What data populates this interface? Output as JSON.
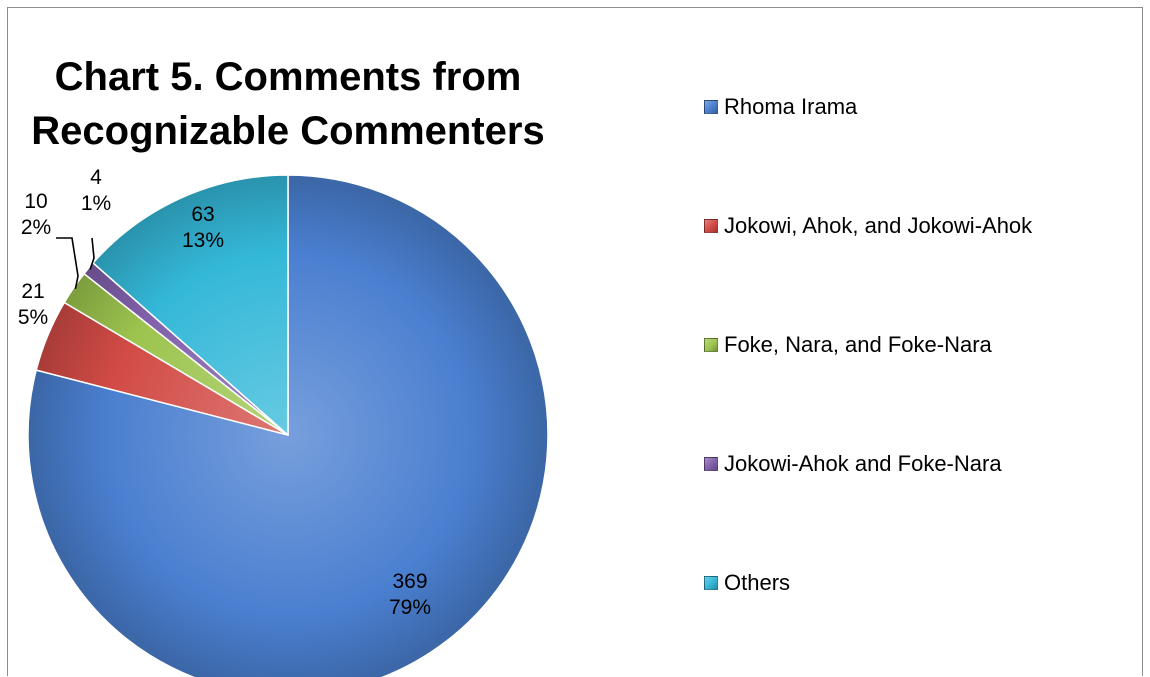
{
  "chart_data": {
    "type": "pie",
    "title_lines": [
      "Chart 5. Comments from",
      "Recognizable Commenters"
    ],
    "legend_position": "right",
    "slices": [
      {
        "name": "Rhoma Irama",
        "value": 369,
        "value_label": "369",
        "percent_label": "79%",
        "color": "#4a7fd0"
      },
      {
        "name": "Jokowi, Ahok, and Jokowi-Ahok",
        "value": 21,
        "value_label": "21",
        "percent_label": "5%",
        "color": "#d24b46"
      },
      {
        "name": "Foke, Nara, and Foke-Nara",
        "value": 10,
        "value_label": "10",
        "percent_label": "2%",
        "color": "#9cc44e"
      },
      {
        "name": "Jokowi-Ahok and Foke-Nara",
        "value": 4,
        "value_label": "4",
        "percent_label": "1%",
        "color": "#8060ab"
      },
      {
        "name": "Others",
        "value": 63,
        "value_label": "63",
        "percent_label": "13%",
        "color": "#34b8d8"
      }
    ]
  }
}
